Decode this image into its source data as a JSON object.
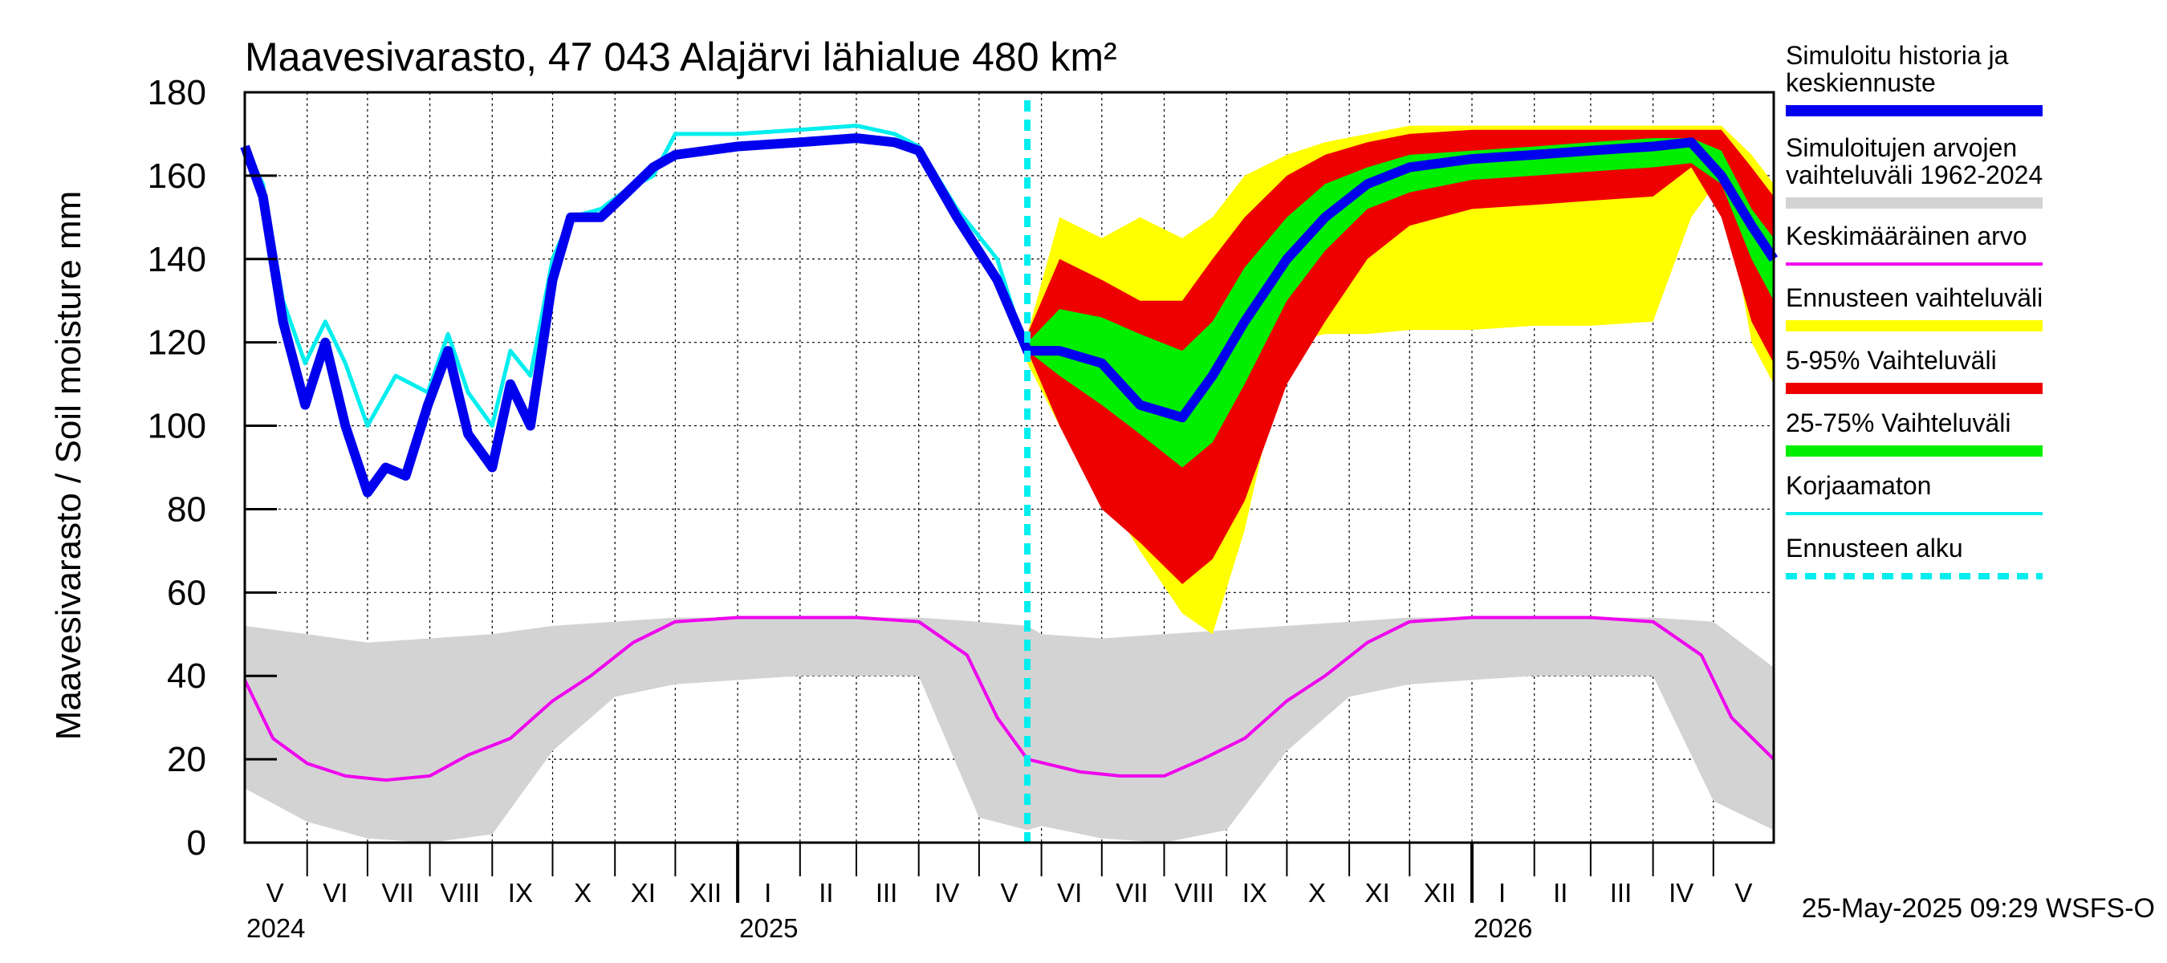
{
  "chart_data": {
    "type": "area",
    "title": "Maavesivarasto, 47 043 Alajärvi lähialue 480 km²",
    "ylabel": "Maavesivarasto / Soil moisture   mm",
    "ylim": [
      0,
      180
    ],
    "y_ticks": [
      "0",
      "20",
      "40",
      "60",
      "80",
      "100",
      "120",
      "140",
      "160",
      "180"
    ],
    "x_range": [
      "2024-05-01",
      "2026-05-31"
    ],
    "forecast_start": "2025-05-25",
    "grid": true,
    "legend_position": "right",
    "timestamp": "25-May-2025 09:29 WSFS-O",
    "month_labels": [
      {
        "label": "V",
        "date": "2024-05-16"
      },
      {
        "label": "VI",
        "date": "2024-06-15"
      },
      {
        "label": "VII",
        "date": "2024-07-16"
      },
      {
        "label": "VIII",
        "date": "2024-08-16"
      },
      {
        "label": "IX",
        "date": "2024-09-15"
      },
      {
        "label": "X",
        "date": "2024-10-16"
      },
      {
        "label": "XI",
        "date": "2024-11-15"
      },
      {
        "label": "XII",
        "date": "2024-12-16"
      },
      {
        "label": "I",
        "date": "2025-01-16"
      },
      {
        "label": "II",
        "date": "2025-02-14"
      },
      {
        "label": "III",
        "date": "2025-03-16"
      },
      {
        "label": "IV",
        "date": "2025-04-15"
      },
      {
        "label": "V",
        "date": "2025-05-16"
      },
      {
        "label": "VI",
        "date": "2025-06-15"
      },
      {
        "label": "VII",
        "date": "2025-07-16"
      },
      {
        "label": "VIII",
        "date": "2025-08-16"
      },
      {
        "label": "IX",
        "date": "2025-09-15"
      },
      {
        "label": "X",
        "date": "2025-10-16"
      },
      {
        "label": "XI",
        "date": "2025-11-15"
      },
      {
        "label": "XII",
        "date": "2025-12-16"
      },
      {
        "label": "I",
        "date": "2026-01-16"
      },
      {
        "label": "II",
        "date": "2026-02-14"
      },
      {
        "label": "III",
        "date": "2026-03-16"
      },
      {
        "label": "IV",
        "date": "2026-04-15"
      },
      {
        "label": "V",
        "date": "2026-05-16"
      }
    ],
    "year_labels": [
      {
        "label": "2024",
        "date": "2024-05-01"
      },
      {
        "label": "2025",
        "date": "2025-01-01"
      },
      {
        "label": "2026",
        "date": "2026-01-01"
      }
    ],
    "legend": [
      {
        "label": "Simuloitu historia ja keskiennuste",
        "color": "#0000ee",
        "style": "thick"
      },
      {
        "label": "Simuloitujen arvojen vaihteluväli 1962-2024",
        "color": "#d3d3d3",
        "style": "thick"
      },
      {
        "label": "Keskimääräinen arvo",
        "color": "#ee00ee",
        "style": "thin"
      },
      {
        "label": "Ennusteen vaihteluväli",
        "color": "#ffff00",
        "style": "thick"
      },
      {
        "label": "5-95% Vaihteluväli",
        "color": "#ee0000",
        "style": "thick"
      },
      {
        "label": "25-75% Vaihteluväli",
        "color": "#00ee00",
        "style": "thick"
      },
      {
        "label": "Korjaamaton",
        "color": "#00eeee",
        "style": "thin"
      },
      {
        "label": "Ennusteen alku",
        "color": "#00eeee",
        "style": "dashed"
      }
    ],
    "series": [
      {
        "name": "Simuloitujen arvojen vaihteluväli 1962-2024",
        "kind": "band",
        "color": "#d3d3d3",
        "x": [
          "2024-05-01",
          "2024-06-01",
          "2024-07-01",
          "2024-08-01",
          "2024-09-01",
          "2024-10-01",
          "2024-11-01",
          "2024-12-01",
          "2025-01-01",
          "2025-02-01",
          "2025-03-01",
          "2025-04-01",
          "2025-05-01",
          "2025-05-25",
          "2025-06-01",
          "2025-07-01",
          "2025-08-01",
          "2025-09-01",
          "2025-10-01",
          "2025-11-01",
          "2025-12-01",
          "2026-01-01",
          "2026-02-01",
          "2026-03-01",
          "2026-04-01",
          "2026-05-01",
          "2026-05-31"
        ],
        "low": [
          13,
          5,
          1,
          0,
          2,
          22,
          35,
          38,
          39,
          40,
          40,
          40,
          6,
          3,
          4,
          1,
          0,
          3,
          22,
          35,
          38,
          39,
          40,
          40,
          40,
          10,
          3
        ],
        "high": [
          52,
          50,
          48,
          49,
          50,
          52,
          53,
          54,
          54,
          54,
          54,
          54,
          53,
          52,
          50,
          49,
          50,
          51,
          52,
          53,
          54,
          54,
          54,
          54,
          54,
          53,
          42
        ]
      },
      {
        "name": "Keskimääräinen arvo",
        "kind": "line",
        "color": "#ee00ee",
        "x": [
          "2024-05-01",
          "2024-05-15",
          "2024-06-01",
          "2024-06-20",
          "2024-07-10",
          "2024-08-01",
          "2024-08-20",
          "2024-09-10",
          "2024-10-01",
          "2024-10-20",
          "2024-11-10",
          "2024-12-01",
          "2025-01-01",
          "2025-02-01",
          "2025-03-01",
          "2025-04-01",
          "2025-04-25",
          "2025-05-10",
          "2025-05-25",
          "2025-06-20",
          "2025-07-10",
          "2025-08-01",
          "2025-08-20",
          "2025-09-10",
          "2025-10-01",
          "2025-10-20",
          "2025-11-10",
          "2025-12-01",
          "2026-01-01",
          "2026-02-01",
          "2026-03-01",
          "2026-04-01",
          "2026-04-25",
          "2026-05-10",
          "2026-05-31"
        ],
        "values": [
          39,
          25,
          19,
          16,
          15,
          16,
          21,
          25,
          34,
          40,
          48,
          53,
          54,
          54,
          54,
          53,
          45,
          30,
          20,
          17,
          16,
          16,
          20,
          25,
          34,
          40,
          48,
          53,
          54,
          54,
          54,
          53,
          45,
          30,
          20
        ]
      },
      {
        "name": "Korjaamaton",
        "kind": "line",
        "color": "#00eeee",
        "x": [
          "2024-05-01",
          "2024-05-10",
          "2024-05-20",
          "2024-05-31",
          "2024-06-10",
          "2024-06-20",
          "2024-07-01",
          "2024-07-15",
          "2024-07-31",
          "2024-08-10",
          "2024-08-20",
          "2024-09-01",
          "2024-09-10",
          "2024-09-20",
          "2024-10-01",
          "2024-10-10",
          "2024-10-25",
          "2024-11-05",
          "2024-11-20",
          "2024-12-01",
          "2025-01-01",
          "2025-02-01",
          "2025-03-01",
          "2025-03-20",
          "2025-04-01",
          "2025-04-20",
          "2025-05-10",
          "2025-05-25"
        ],
        "values": [
          167,
          158,
          130,
          115,
          125,
          115,
          100,
          112,
          108,
          122,
          108,
          100,
          118,
          112,
          140,
          150,
          152,
          156,
          160,
          170,
          170,
          171,
          172,
          170,
          167,
          152,
          140,
          117
        ]
      },
      {
        "name": "Simuloitu historia ja keskiennuste",
        "kind": "line",
        "color": "#0000ee",
        "x": [
          "2024-05-01",
          "2024-05-10",
          "2024-05-20",
          "2024-05-31",
          "2024-06-10",
          "2024-06-20",
          "2024-07-01",
          "2024-07-10",
          "2024-07-20",
          "2024-07-31",
          "2024-08-10",
          "2024-08-20",
          "2024-09-01",
          "2024-09-10",
          "2024-09-20",
          "2024-10-01",
          "2024-10-10",
          "2024-10-25",
          "2024-11-05",
          "2024-11-20",
          "2024-12-01",
          "2025-01-01",
          "2025-02-01",
          "2025-03-01",
          "2025-03-20",
          "2025-04-01",
          "2025-04-20",
          "2025-05-10",
          "2025-05-25",
          "2025-06-10",
          "2025-07-01",
          "2025-07-20",
          "2025-08-10",
          "2025-08-25",
          "2025-09-10",
          "2025-10-01",
          "2025-10-20",
          "2025-11-10",
          "2025-12-01",
          "2026-01-01",
          "2026-02-01",
          "2026-03-01",
          "2026-04-01",
          "2026-04-20",
          "2026-05-05",
          "2026-05-20",
          "2026-05-31"
        ],
        "values": [
          167,
          155,
          125,
          105,
          120,
          100,
          84,
          90,
          88,
          105,
          118,
          98,
          90,
          110,
          100,
          135,
          150,
          150,
          155,
          162,
          165,
          167,
          168,
          169,
          168,
          166,
          150,
          135,
          118,
          118,
          115,
          105,
          102,
          112,
          125,
          140,
          150,
          158,
          162,
          164,
          165,
          166,
          167,
          168,
          160,
          148,
          140
        ]
      },
      {
        "name": "Ennusteen vaihteluväli",
        "kind": "band",
        "color": "#ffff00",
        "x": [
          "2025-05-25",
          "2025-06-10",
          "2025-07-01",
          "2025-07-20",
          "2025-08-10",
          "2025-08-25",
          "2025-09-10",
          "2025-10-01",
          "2025-10-20",
          "2025-11-10",
          "2025-12-01",
          "2026-01-01",
          "2026-02-01",
          "2026-03-01",
          "2026-04-01",
          "2026-04-20",
          "2026-05-05",
          "2026-05-20",
          "2026-05-31"
        ],
        "low": [
          115,
          100,
          85,
          70,
          55,
          50,
          75,
          120,
          122,
          122,
          123,
          123,
          124,
          124,
          125,
          150,
          160,
          120,
          110
        ],
        "high": [
          122,
          150,
          145,
          150,
          145,
          150,
          160,
          165,
          168,
          170,
          172,
          172,
          172,
          172,
          172,
          172,
          172,
          165,
          158
        ]
      },
      {
        "name": "5-95% Vaihteluväli",
        "kind": "band",
        "color": "#ee0000",
        "x": [
          "2025-05-25",
          "2025-06-10",
          "2025-07-01",
          "2025-07-20",
          "2025-08-10",
          "2025-08-25",
          "2025-09-10",
          "2025-10-01",
          "2025-10-20",
          "2025-11-10",
          "2025-12-01",
          "2026-01-01",
          "2026-02-01",
          "2026-03-01",
          "2026-04-01",
          "2026-04-20",
          "2026-05-05",
          "2026-05-20",
          "2026-05-31"
        ],
        "low": [
          118,
          100,
          80,
          72,
          62,
          68,
          82,
          110,
          125,
          140,
          148,
          152,
          153,
          154,
          155,
          162,
          150,
          125,
          115
        ],
        "high": [
          122,
          140,
          135,
          130,
          130,
          140,
          150,
          160,
          165,
          168,
          170,
          171,
          171,
          171,
          171,
          171,
          171,
          162,
          155
        ]
      },
      {
        "name": "25-75% Vaihteluväli",
        "kind": "band",
        "color": "#00ee00",
        "x": [
          "2025-05-25",
          "2025-06-10",
          "2025-07-01",
          "2025-07-20",
          "2025-08-10",
          "2025-08-25",
          "2025-09-10",
          "2025-10-01",
          "2025-10-20",
          "2025-11-10",
          "2025-12-01",
          "2026-01-01",
          "2026-02-01",
          "2026-03-01",
          "2026-04-01",
          "2026-04-20",
          "2026-05-05",
          "2026-05-20",
          "2026-05-31"
        ],
        "low": [
          118,
          112,
          105,
          98,
          90,
          96,
          110,
          130,
          142,
          152,
          156,
          159,
          160,
          161,
          162,
          163,
          158,
          140,
          130
        ],
        "high": [
          120,
          128,
          126,
          122,
          118,
          125,
          138,
          150,
          158,
          162,
          165,
          166,
          167,
          168,
          169,
          169,
          166,
          152,
          145
        ]
      }
    ]
  }
}
